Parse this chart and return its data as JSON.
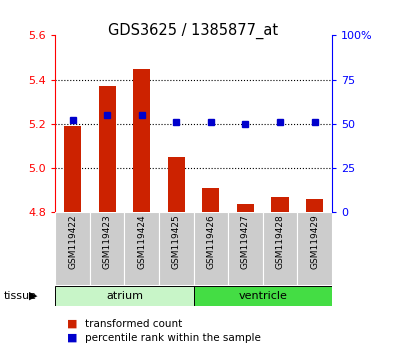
{
  "title": "GDS3625 / 1385877_at",
  "samples": [
    "GSM119422",
    "GSM119423",
    "GSM119424",
    "GSM119425",
    "GSM119426",
    "GSM119427",
    "GSM119428",
    "GSM119429"
  ],
  "red_values": [
    5.19,
    5.37,
    5.45,
    5.05,
    4.91,
    4.84,
    4.87,
    4.86
  ],
  "blue_values": [
    52,
    55,
    55,
    51,
    51,
    50,
    51,
    51
  ],
  "baseline": 4.8,
  "ylim_left": [
    4.8,
    5.6
  ],
  "ylim_right": [
    0,
    100
  ],
  "yticks_left": [
    4.8,
    5.0,
    5.2,
    5.4,
    5.6
  ],
  "yticks_right": [
    0,
    25,
    50,
    75,
    100
  ],
  "ytick_labels_right": [
    "0",
    "25",
    "50",
    "75",
    "100%"
  ],
  "bar_color": "#CC2200",
  "marker_color": "#0000CC",
  "bar_width": 0.5,
  "atrium_color": "#c8f5c8",
  "ventricle_color": "#44dd44",
  "gray_color": "#cccccc",
  "tissue_label": "tissue",
  "legend_red": "transformed count",
  "legend_blue": "percentile rank within the sample",
  "grid_ticks": [
    5.0,
    5.2,
    5.4
  ]
}
